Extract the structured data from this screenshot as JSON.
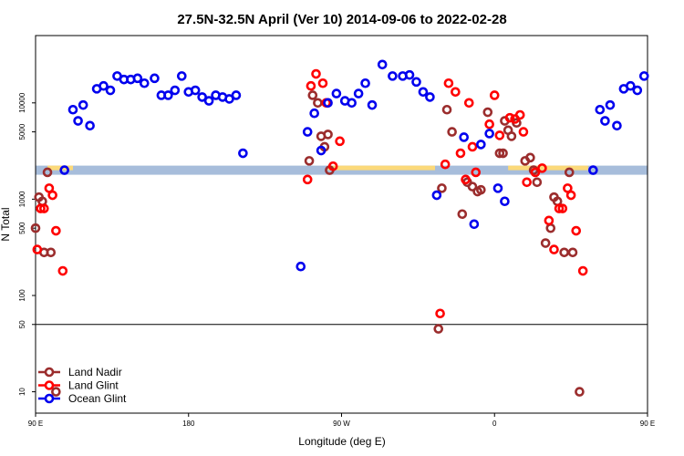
{
  "chart_data": {
    "type": "scatter",
    "title": "27.5N-32.5N April (Ver 10)   2014-09-06 to 2022-02-28",
    "xlabel": "Longitude (deg E)",
    "ylabel": "N Total",
    "x_axis": {
      "range": [
        90,
        450
      ],
      "ticks": [
        {
          "value": 90,
          "label": "90 E"
        },
        {
          "value": 180,
          "label": "180"
        },
        {
          "value": 270,
          "label": "90 W"
        },
        {
          "value": 360,
          "label": "0"
        },
        {
          "value": 450,
          "label": "90 E"
        },
        {
          "value": 540,
          "label": "180"
        }
      ]
    },
    "y_axis": {
      "scale": "log",
      "range": [
        6,
        50000
      ],
      "ticks": [
        {
          "value": 10,
          "label": "10"
        },
        {
          "value": 50,
          "label": "50"
        },
        {
          "value": 100,
          "label": "100"
        },
        {
          "value": 500,
          "label": "500"
        },
        {
          "value": 1000,
          "label": "1000"
        },
        {
          "value": 5000,
          "label": "5000"
        },
        {
          "value": 10000,
          "label": "10000"
        }
      ],
      "reference_line": 50
    },
    "legend": {
      "position": "bottom-left",
      "entries": [
        "Land Nadir",
        "Land Glint",
        "Ocean Glint"
      ]
    },
    "band": {
      "y": 2000
    },
    "colors": {
      "land_nadir": "#9b2d2d",
      "land_glint": "#ff0000",
      "ocean_glint": "#0000ee",
      "band_blue": "#a7bddb",
      "band_yellow": "#fbd97a"
    },
    "series": [
      {
        "name": "Land Nadir",
        "color": "#9b2d2d",
        "points": [
          [
            88,
            350
          ],
          [
            90,
            500
          ],
          [
            92,
            1050
          ],
          [
            94,
            950
          ],
          [
            95,
            280
          ],
          [
            97,
            1900
          ],
          [
            99,
            280
          ],
          [
            102,
            10
          ],
          [
            251,
            2500
          ],
          [
            253,
            12000
          ],
          [
            256,
            10000
          ],
          [
            258,
            4500
          ],
          [
            260,
            3500
          ],
          [
            262,
            4700
          ],
          [
            263,
            2000
          ],
          [
            327,
            45
          ],
          [
            329,
            1300
          ],
          [
            332,
            8500
          ],
          [
            335,
            5000
          ],
          [
            341,
            700
          ],
          [
            344,
            1500
          ],
          [
            347,
            1350
          ],
          [
            350,
            1200
          ],
          [
            352,
            1250
          ],
          [
            356,
            8000
          ],
          [
            363,
            3000
          ],
          [
            365,
            3000
          ],
          [
            366,
            6500
          ],
          [
            368,
            5200
          ],
          [
            370,
            4500
          ],
          [
            373,
            6200
          ],
          [
            378,
            2500
          ],
          [
            381,
            2700
          ],
          [
            383,
            2000
          ],
          [
            385,
            1500
          ],
          [
            390,
            350
          ],
          [
            393,
            500
          ],
          [
            395,
            1050
          ],
          [
            397,
            950
          ],
          [
            401,
            280
          ],
          [
            404,
            1900
          ],
          [
            406,
            280
          ],
          [
            410,
            10
          ]
        ]
      },
      {
        "name": "Land Glint",
        "color": "#ff0000",
        "points": [
          [
            87,
            600
          ],
          [
            91,
            300
          ],
          [
            93,
            800
          ],
          [
            95,
            800
          ],
          [
            98,
            1300
          ],
          [
            100,
            1100
          ],
          [
            102,
            470
          ],
          [
            106,
            180
          ],
          [
            250,
            1600
          ],
          [
            252,
            15000
          ],
          [
            255,
            20000
          ],
          [
            259,
            16000
          ],
          [
            261,
            10000
          ],
          [
            265,
            2200
          ],
          [
            269,
            4000
          ],
          [
            328,
            65
          ],
          [
            331,
            2300
          ],
          [
            333,
            16000
          ],
          [
            337,
            13000
          ],
          [
            340,
            3000
          ],
          [
            343,
            1600
          ],
          [
            345,
            10000
          ],
          [
            347,
            3500
          ],
          [
            349,
            1900
          ],
          [
            357,
            6000
          ],
          [
            360,
            12000
          ],
          [
            363,
            4600
          ],
          [
            369,
            7000
          ],
          [
            372,
            6800
          ],
          [
            375,
            7500
          ],
          [
            377,
            5000
          ],
          [
            379,
            1500
          ],
          [
            384,
            1900
          ],
          [
            388,
            2100
          ],
          [
            392,
            600
          ],
          [
            395,
            300
          ],
          [
            398,
            800
          ],
          [
            400,
            800
          ],
          [
            403,
            1300
          ],
          [
            405,
            1100
          ],
          [
            408,
            470
          ],
          [
            412,
            180
          ]
        ]
      },
      {
        "name": "Ocean Glint",
        "color": "#0000ee",
        "points": [
          [
            107,
            2000
          ],
          [
            112,
            8500
          ],
          [
            115,
            6500
          ],
          [
            118,
            9500
          ],
          [
            122,
            5800
          ],
          [
            126,
            14000
          ],
          [
            130,
            15000
          ],
          [
            134,
            13500
          ],
          [
            138,
            19000
          ],
          [
            142,
            17500
          ],
          [
            146,
            17500
          ],
          [
            150,
            18000
          ],
          [
            154,
            16000
          ],
          [
            160,
            18000
          ],
          [
            164,
            12000
          ],
          [
            168,
            12000
          ],
          [
            172,
            13500
          ],
          [
            176,
            19000
          ],
          [
            180,
            13000
          ],
          [
            184,
            13500
          ],
          [
            188,
            11500
          ],
          [
            192,
            10500
          ],
          [
            196,
            12000
          ],
          [
            200,
            11500
          ],
          [
            204,
            11000
          ],
          [
            208,
            12000
          ],
          [
            212,
            3000
          ],
          [
            246,
            200
          ],
          [
            250,
            5000
          ],
          [
            254,
            7800
          ],
          [
            258,
            3200
          ],
          [
            262,
            10000
          ],
          [
            267,
            12500
          ],
          [
            272,
            10500
          ],
          [
            276,
            10000
          ],
          [
            280,
            12500
          ],
          [
            284,
            16000
          ],
          [
            288,
            9500
          ],
          [
            294,
            25000
          ],
          [
            300,
            19000
          ],
          [
            306,
            19000
          ],
          [
            310,
            19500
          ],
          [
            314,
            16500
          ],
          [
            318,
            13000
          ],
          [
            322,
            11500
          ],
          [
            326,
            1100
          ],
          [
            342,
            4400
          ],
          [
            348,
            550
          ],
          [
            352,
            3700
          ],
          [
            357,
            4800
          ],
          [
            362,
            1300
          ],
          [
            366,
            950
          ],
          [
            418,
            2000
          ],
          [
            422,
            8500
          ],
          [
            425,
            6500
          ],
          [
            428,
            9500
          ],
          [
            432,
            5800
          ],
          [
            436,
            14000
          ],
          [
            440,
            15000
          ],
          [
            444,
            13500
          ],
          [
            448,
            19000
          ],
          [
            452,
            17500
          ],
          [
            456,
            17500
          ],
          [
            460,
            18000
          ]
        ]
      }
    ]
  }
}
